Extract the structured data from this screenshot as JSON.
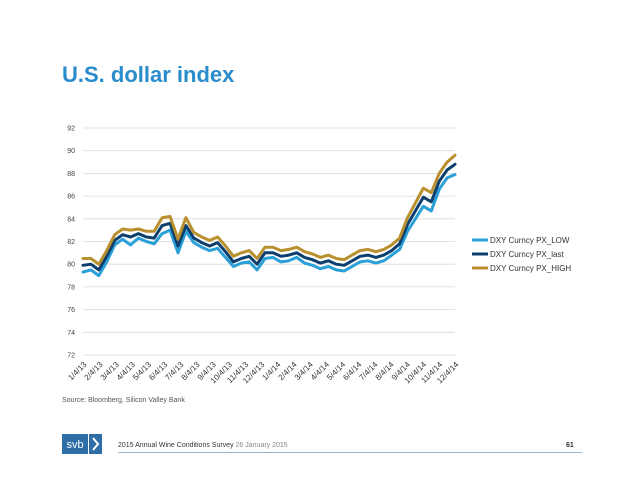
{
  "slide": {
    "title": "U.S. dollar index",
    "source": "Source: Bloomberg, Silicon Valley Bank",
    "footer_survey": "2015 Annual Wine Conditions Survey",
    "footer_date": "26 January 2015",
    "page_number": "61",
    "logo_text": "svb"
  },
  "colors": {
    "title": "#2b8ccc",
    "low": "#2a9fd8",
    "last": "#0d3f6e",
    "high": "#b8902e",
    "grid": "#d9d9d9",
    "logo_blue": "#2f6fa7"
  },
  "chart_data": {
    "type": "line",
    "title": "",
    "xlabel": "",
    "ylabel": "",
    "ylim": [
      72,
      92
    ],
    "yticks": [
      72,
      74,
      76,
      78,
      80,
      82,
      84,
      86,
      88,
      90,
      92
    ],
    "grid": true,
    "legend_position": "right",
    "x_tick_labels": [
      "1/4/13",
      "2/4/13",
      "3/4/13",
      "4/4/13",
      "5/4/13",
      "6/4/13",
      "7/4/13",
      "8/4/13",
      "9/4/13",
      "10/4/13",
      "11/4/13",
      "12/4/13",
      "1/4/14",
      "2/4/14",
      "3/4/14",
      "4/4/14",
      "5/4/14",
      "6/4/14",
      "7/4/14",
      "8/4/14",
      "9/4/14",
      "10/4/14",
      "11/4/14",
      "12/4/14"
    ],
    "x": [
      "1/4/13",
      "1/18/13",
      "2/4/13",
      "2/18/13",
      "3/4/13",
      "3/18/13",
      "4/4/13",
      "4/18/13",
      "5/4/13",
      "5/18/13",
      "6/4/13",
      "6/18/13",
      "7/4/13",
      "7/18/13",
      "8/4/13",
      "8/18/13",
      "9/4/13",
      "9/18/13",
      "10/4/13",
      "10/18/13",
      "11/4/13",
      "11/18/13",
      "12/4/13",
      "12/18/13",
      "1/4/14",
      "1/18/14",
      "2/4/14",
      "2/18/14",
      "3/4/14",
      "3/18/14",
      "4/4/14",
      "4/18/14",
      "5/4/14",
      "5/18/14",
      "6/4/14",
      "6/18/14",
      "7/4/14",
      "7/18/14",
      "8/4/14",
      "8/18/14",
      "9/4/14",
      "9/18/14",
      "10/4/14",
      "10/18/14",
      "11/4/14",
      "11/18/14",
      "12/4/14",
      "12/18/14"
    ],
    "series": [
      {
        "name": "DXY Curncy PX_LOW",
        "color_key": "low",
        "values": [
          79.3,
          79.5,
          79.0,
          80.2,
          81.7,
          82.2,
          81.7,
          82.3,
          82.0,
          81.8,
          82.7,
          83.0,
          81.0,
          82.9,
          81.9,
          81.5,
          81.2,
          81.4,
          80.6,
          79.8,
          80.1,
          80.2,
          79.5,
          80.5,
          80.6,
          80.2,
          80.3,
          80.6,
          80.1,
          79.9,
          79.6,
          79.8,
          79.5,
          79.4,
          79.8,
          80.2,
          80.3,
          80.1,
          80.3,
          80.8,
          81.3,
          82.9,
          84.0,
          85.1,
          84.7,
          86.6,
          87.6,
          87.9
        ]
      },
      {
        "name": "DXY Curncy PX_last",
        "color_key": "last",
        "values": [
          79.9,
          80.0,
          79.5,
          80.7,
          82.1,
          82.6,
          82.4,
          82.7,
          82.4,
          82.3,
          83.4,
          83.6,
          81.6,
          83.4,
          82.3,
          81.9,
          81.6,
          81.9,
          81.1,
          80.2,
          80.5,
          80.7,
          80.0,
          81.0,
          81.0,
          80.7,
          80.8,
          81.0,
          80.6,
          80.4,
          80.1,
          80.3,
          80.0,
          79.9,
          80.3,
          80.7,
          80.8,
          80.6,
          80.8,
          81.2,
          81.8,
          83.5,
          84.7,
          85.9,
          85.5,
          87.3,
          88.3,
          88.8
        ]
      },
      {
        "name": "DXY Curncy PX_HIGH",
        "color_key": "high",
        "values": [
          80.5,
          80.5,
          80.0,
          81.2,
          82.6,
          83.1,
          83.0,
          83.1,
          82.9,
          82.9,
          84.1,
          84.2,
          82.2,
          84.1,
          82.8,
          82.4,
          82.1,
          82.4,
          81.6,
          80.7,
          81.0,
          81.2,
          80.5,
          81.5,
          81.5,
          81.2,
          81.3,
          81.5,
          81.1,
          80.9,
          80.6,
          80.8,
          80.5,
          80.4,
          80.8,
          81.2,
          81.3,
          81.1,
          81.3,
          81.7,
          82.3,
          84.1,
          85.4,
          86.7,
          86.3,
          88.0,
          89.0,
          89.6
        ]
      }
    ]
  }
}
